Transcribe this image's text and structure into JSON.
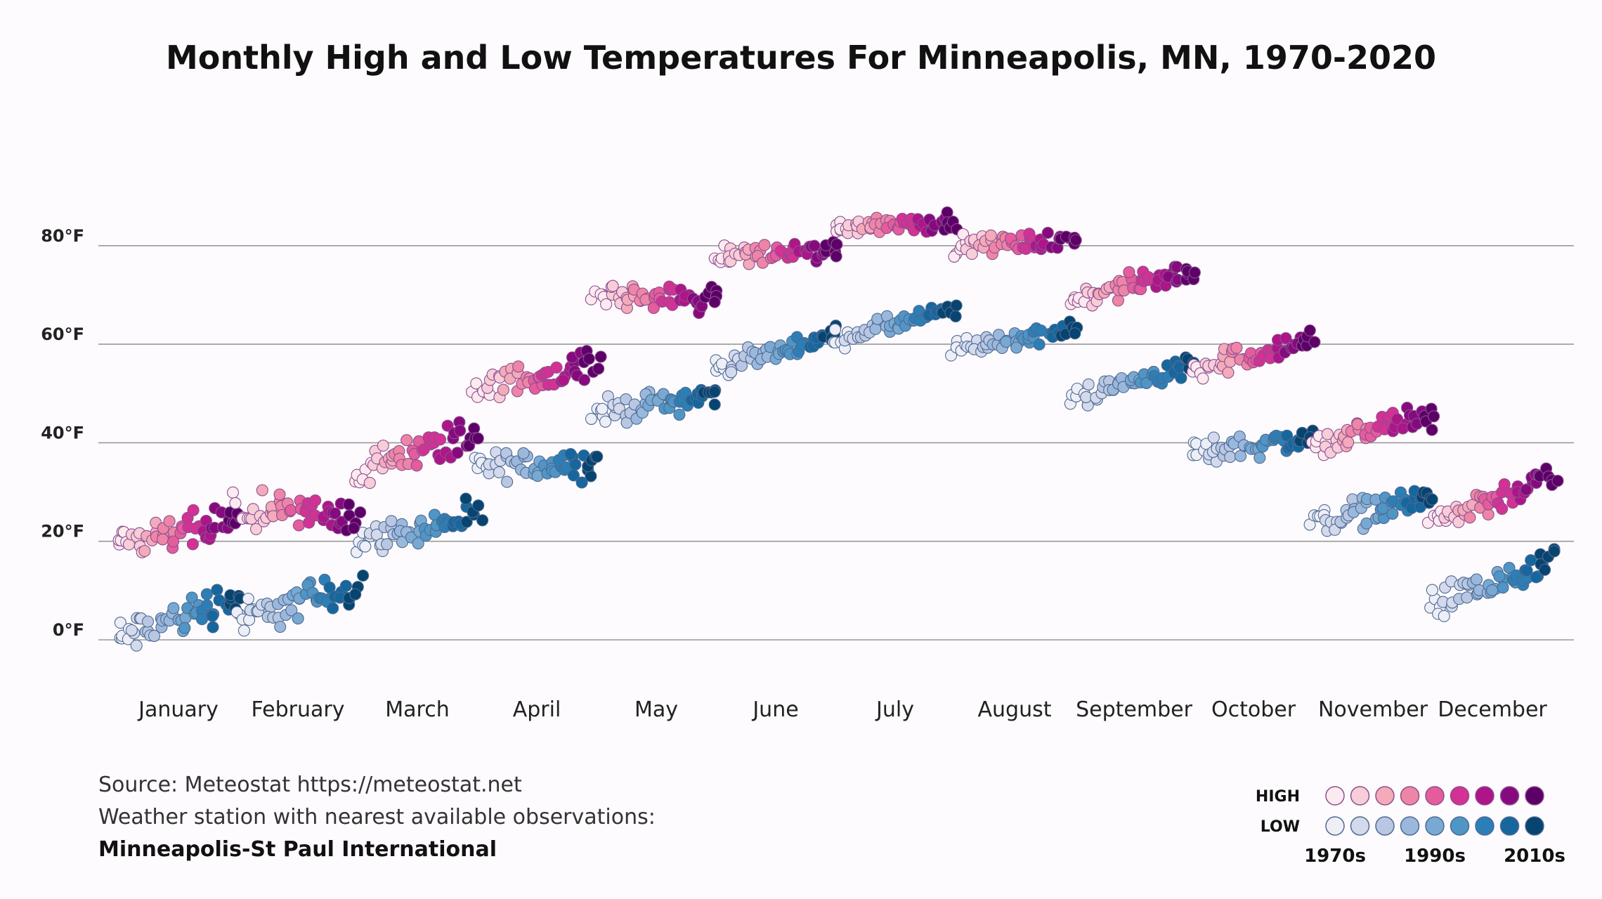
{
  "chart_data": {
    "type": "scatter",
    "title": "Monthly High and Low Temperatures For Minneapolis, MN, 1970-2020",
    "xlabel": "",
    "ylabel": "",
    "ylim": [
      -12,
      95
    ],
    "yticks": [
      {
        "value": 0,
        "label": "0°F"
      },
      {
        "value": 20,
        "label": "20°F"
      },
      {
        "value": 40,
        "label": "40°F"
      },
      {
        "value": 60,
        "label": "60°F"
      },
      {
        "value": 80,
        "label": "80°F"
      }
    ],
    "categories": [
      "January",
      "February",
      "March",
      "April",
      "May",
      "June",
      "July",
      "August",
      "September",
      "October",
      "November",
      "December"
    ],
    "grid": true,
    "years": [
      1970,
      2020
    ],
    "series": [
      {
        "name": "HIGH",
        "colors": [
          "#fbeaf0",
          "#f7cdd8",
          "#f3aab9",
          "#ee85a6",
          "#e55c9c",
          "#d33193",
          "#ad1588",
          "#860a7e",
          "#5c0068"
        ],
        "start": [
          19,
          26,
          34,
          51,
          70,
          78,
          84,
          80,
          69,
          55,
          39,
          24
        ],
        "end": [
          24,
          25,
          42,
          56,
          69,
          79,
          85,
          81,
          75,
          61,
          46,
          33
        ],
        "jitter": [
          10,
          10,
          10,
          8,
          7,
          6,
          5,
          5,
          6,
          7,
          8,
          8
        ]
      },
      {
        "name": "LOW",
        "colors": [
          "#eeeef7",
          "#d4d9ec",
          "#b9c7e2",
          "#9ab8dc",
          "#78a9d2",
          "#4f95c5",
          "#2b7fb6",
          "#15679e",
          "#07446f"
        ],
        "start": [
          0,
          4,
          20,
          35,
          46,
          55,
          61,
          59,
          49,
          38,
          24,
          7
        ],
        "end": [
          9,
          11,
          25,
          36,
          50,
          62,
          67,
          63,
          56,
          41,
          29,
          15
        ],
        "jitter": [
          11,
          10,
          8,
          8,
          7,
          5,
          5,
          5,
          6,
          7,
          8,
          9
        ]
      }
    ],
    "legend": {
      "position": "bottom-right",
      "rows": [
        "HIGH",
        "LOW"
      ],
      "decade_labels": [
        "1970s",
        "1990s",
        "2010s"
      ]
    }
  },
  "footer": {
    "source": "Source: Meteostat https://meteostat.net",
    "station_note": "Weather station with nearest available observations:",
    "station_name": "Minneapolis-St Paul International"
  }
}
